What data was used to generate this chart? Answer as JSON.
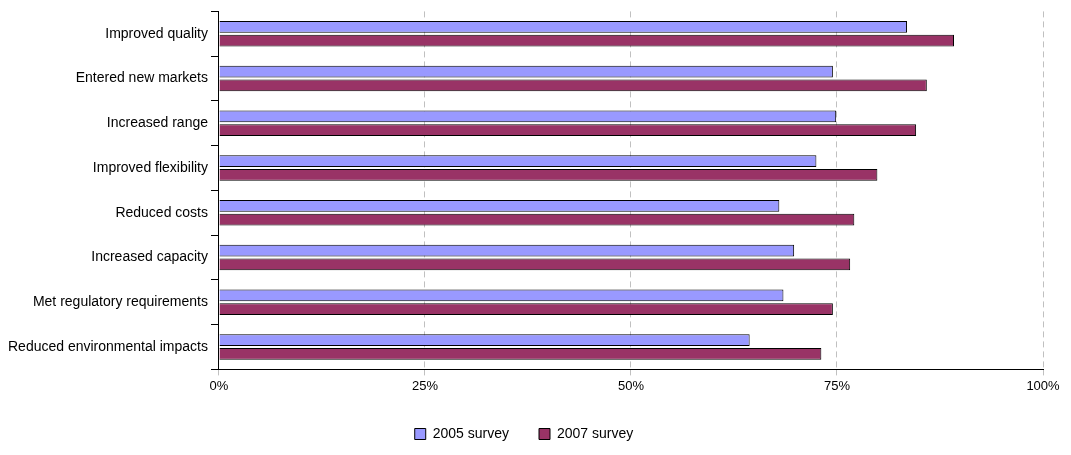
{
  "chart_data": {
    "type": "bar",
    "orientation": "horizontal",
    "categories": [
      "Improved quality",
      "Entered new markets",
      "Increased range",
      "Improved flexibility",
      "Reduced costs",
      "Increased capacity",
      "Met regulatory requirements",
      "Reduced environmental impacts"
    ],
    "series": [
      {
        "name": "2005 survey",
        "color": "#9999ff",
        "values": [
          83.5,
          74.5,
          74.9,
          72.5,
          68,
          69.8,
          68.5,
          64.4
        ]
      },
      {
        "name": "2007 survey",
        "color": "#993366",
        "values": [
          89.2,
          85.9,
          84.6,
          79.9,
          77.1,
          76.6,
          74.5,
          73.1
        ]
      }
    ],
    "xlim": [
      0,
      100
    ],
    "xticks": [
      {
        "value": 0,
        "label": "0%"
      },
      {
        "value": 25,
        "label": "25%"
      },
      {
        "value": 50,
        "label": "50%"
      },
      {
        "value": 75,
        "label": "75%"
      },
      {
        "value": 100,
        "label": "100%"
      }
    ],
    "grid": "x",
    "legend": "bottom"
  }
}
